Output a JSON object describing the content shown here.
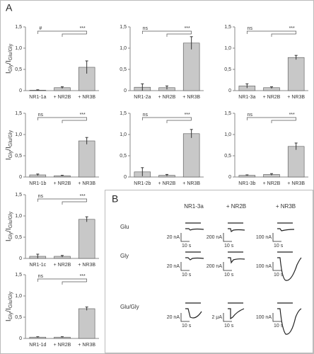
{
  "panel_labels": [
    "A",
    "B"
  ],
  "chart_data": [
    {
      "type": "bar",
      "categories": [
        "NR1-1a",
        "+ NR2B",
        "+ NR3B"
      ],
      "values": [
        0.01,
        0.07,
        0.55
      ],
      "errors": [
        0.01,
        0.02,
        0.15
      ],
      "annotations": [
        "#",
        "***"
      ],
      "y_label_parts": [
        "I",
        "Gly",
        "/I",
        "Glu/Gly"
      ],
      "color": "#c8c8c8",
      "ylim": [
        0,
        1.5
      ],
      "yticks": [
        0,
        {
          "value": 0.5,
          "label": "0,5"
        },
        {
          "value": 1,
          "label": "1,0"
        },
        {
          "value": 1.5,
          "label": "1,5"
        }
      ]
    },
    {
      "type": "bar",
      "categories": [
        "NR1-2a",
        "+ NR2B",
        "+ NR3B"
      ],
      "values": [
        0.08,
        0.07,
        1.12
      ],
      "errors": [
        0.08,
        0.04,
        0.15
      ],
      "annotations": [
        "ns",
        "***"
      ],
      "color": "#c8c8c8",
      "ylim": [
        0,
        1.5
      ],
      "yticks": [
        0,
        {
          "value": 0.5,
          "label": "0,5"
        },
        {
          "value": 1,
          "label": "1,0"
        },
        {
          "value": 1.5,
          "label": "1,5"
        }
      ]
    },
    {
      "type": "bar",
      "categories": [
        "NR1-3a",
        "+ NR2B",
        "+ NR3B"
      ],
      "values": [
        0.11,
        0.07,
        0.78
      ],
      "errors": [
        0.05,
        0.02,
        0.05
      ],
      "annotations": [
        "ns",
        "***"
      ],
      "color": "#c8c8c8",
      "ylim": [
        0,
        1.5
      ],
      "yticks": [
        0,
        {
          "value": 0.5,
          "label": "0,5"
        },
        {
          "value": 1,
          "label": "1,0"
        },
        {
          "value": 1.5,
          "label": "1,5"
        }
      ]
    },
    {
      "type": "bar",
      "categories": [
        "NR1-1b",
        "+ NR2B",
        "+ NR3B"
      ],
      "values": [
        0.05,
        0.03,
        0.85
      ],
      "errors": [
        0.02,
        0.01,
        0.08
      ],
      "annotations": [
        "ns",
        "***"
      ],
      "y_label_parts": [
        "I",
        "Gly",
        "/I",
        "Glu/Gly"
      ],
      "color": "#c8c8c8",
      "ylim": [
        0,
        1.5
      ],
      "yticks": [
        0,
        {
          "value": 0.5,
          "label": "0,5"
        },
        {
          "value": 1,
          "label": "1,0"
        },
        {
          "value": 1.5,
          "label": "1,5"
        }
      ]
    },
    {
      "type": "bar",
      "categories": [
        "NR1-2b",
        "+ NR2B",
        "+ NR3B"
      ],
      "values": [
        0.12,
        0.04,
        1.02
      ],
      "errors": [
        0.1,
        0.02,
        0.1
      ],
      "annotations": [
        "ns",
        "***"
      ],
      "color": "#c8c8c8",
      "ylim": [
        0,
        1.5
      ],
      "yticks": [
        0,
        {
          "value": 0.5,
          "label": "0,5"
        },
        {
          "value": 1,
          "label": "1,0"
        },
        {
          "value": 1.5,
          "label": "1,5"
        }
      ]
    },
    {
      "type": "bar",
      "categories": [
        "NR1-3b",
        "+ NR2B",
        "+ NR3B"
      ],
      "values": [
        0.04,
        0.06,
        0.72
      ],
      "errors": [
        0.01,
        0.02,
        0.08
      ],
      "annotations": [
        "ns",
        "***"
      ],
      "color": "#c8c8c8",
      "ylim": [
        0,
        1.5
      ],
      "yticks": [
        0,
        {
          "value": 0.5,
          "label": "0,5"
        },
        {
          "value": 1,
          "label": "1,0"
        },
        {
          "value": 1.5,
          "label": "1,5"
        }
      ]
    },
    {
      "type": "bar",
      "categories": [
        "NR1-1c",
        "+ NR2B",
        "+ NR3B"
      ],
      "values": [
        0.05,
        0.05,
        0.92
      ],
      "errors": [
        0.05,
        0.02,
        0.06
      ],
      "annotations": [
        "ns",
        "***"
      ],
      "y_label_parts": [
        "I",
        "Gly",
        "/I",
        "Glu/Gly"
      ],
      "color": "#c8c8c8",
      "ylim": [
        0,
        1.5
      ],
      "yticks": [
        0,
        {
          "value": 0.5,
          "label": "0,5"
        },
        {
          "value": 1,
          "label": "1,0"
        },
        {
          "value": 1.5,
          "label": "1,5"
        }
      ]
    },
    {
      "type": "bar",
      "categories": [
        "NR1-1d",
        "+ NR2B",
        "+ NR3B"
      ],
      "values": [
        0.03,
        0.03,
        0.7
      ],
      "errors": [
        0.01,
        0.01,
        0.04
      ],
      "annotations": [
        "ns",
        "***"
      ],
      "y_label_parts": [
        "I",
        "Gly",
        "/I",
        "Glu/Gly"
      ],
      "color": "#c8c8c8",
      "ylim": [
        0,
        1.5
      ],
      "yticks": [
        0,
        {
          "value": 0.5,
          "label": "0,5"
        },
        {
          "value": 1,
          "label": "1,0"
        },
        {
          "value": 1.5,
          "label": "1,5"
        }
      ]
    }
  ],
  "panel_b": {
    "columns": [
      "NR1-3a",
      "+ NR2B",
      "+ NR3B"
    ],
    "rows": [
      "Glu",
      "Gly",
      "Glu/Gly"
    ],
    "scale_labels": [
      [
        [
          "20 nA",
          "10 s"
        ],
        [
          "200 nA",
          "10 s"
        ],
        [
          "100 nA",
          "10 s"
        ]
      ],
      [
        [
          "20 nA",
          "10 s"
        ],
        [
          "200 nA",
          "10 s"
        ],
        [
          "100 nA",
          "10 s"
        ]
      ],
      [
        [
          "20 nA",
          "10 s"
        ],
        [
          "2 μA",
          "10 s"
        ],
        [
          "100 nA",
          "10 s"
        ]
      ]
    ]
  }
}
